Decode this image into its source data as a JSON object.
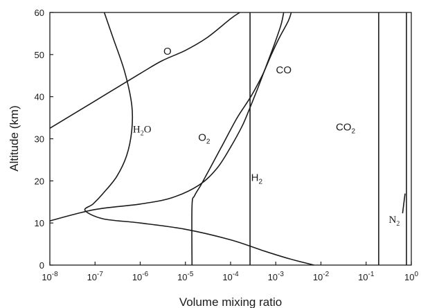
{
  "chart_data": {
    "type": "line",
    "title": "",
    "xlabel": "Volume mixing ratio",
    "ylabel": "Altitude (km)",
    "x_scale": "log",
    "xlim": [
      1e-08,
      1
    ],
    "ylim": [
      0,
      60
    ],
    "grid": false,
    "legend": "none",
    "x_ticks": [
      {
        "base": "10",
        "exp": "-8",
        "value": 1e-08
      },
      {
        "base": "10",
        "exp": "-7",
        "value": 1e-07
      },
      {
        "base": "10",
        "exp": "-6",
        "value": 1e-06
      },
      {
        "base": "10",
        "exp": "-5",
        "value": 1e-05
      },
      {
        "base": "10",
        "exp": "-4",
        "value": 0.0001
      },
      {
        "base": "10",
        "exp": "-3",
        "value": 0.001
      },
      {
        "base": "10",
        "exp": "-2",
        "value": 0.01
      },
      {
        "base": "10",
        "exp": "-1",
        "value": 0.1
      },
      {
        "base": "10",
        "exp": "0",
        "value": 1
      }
    ],
    "y_ticks": [
      "0",
      "10",
      "20",
      "30",
      "40",
      "50",
      "60"
    ],
    "series": [
      {
        "name": "O",
        "label_text": "O",
        "label_sub": "",
        "label_at": {
          "x": 4e-06,
          "y": 50
        },
        "points": [
          [
            1e-08,
            32.5
          ],
          [
            1e-07,
            39
          ],
          [
            1e-06,
            45.5
          ],
          [
            3e-06,
            48.5
          ],
          [
            1e-05,
            51
          ],
          [
            3e-05,
            54
          ],
          [
            0.0001,
            58.5
          ],
          [
            0.00016,
            60
          ]
        ]
      },
      {
        "name": "H2O",
        "label_text": "H",
        "label_sub": "2",
        "label_suffix": "O",
        "label_at": {
          "x": 1.1e-06,
          "y": 31.5
        },
        "points": [
          [
            1.6e-07,
            60
          ],
          [
            2.5e-07,
            54
          ],
          [
            4.5e-07,
            46
          ],
          [
            6.5e-07,
            38
          ],
          [
            6.5e-07,
            32
          ],
          [
            5e-07,
            26
          ],
          [
            3e-07,
            21
          ],
          [
            1.5e-07,
            17
          ],
          [
            9e-08,
            14.5
          ],
          [
            6e-08,
            13
          ],
          [
            1.5e-07,
            11
          ],
          [
            1e-06,
            10
          ],
          [
            1e-05,
            8.5
          ],
          [
            0.0001,
            6
          ],
          [
            0.0005,
            3.5
          ],
          [
            0.002,
            1.5
          ],
          [
            0.007,
            0
          ]
        ]
      },
      {
        "name": "O2",
        "label_text": "O",
        "label_sub": "2",
        "label_at": {
          "x": 2.6e-05,
          "y": 29.5
        },
        "points": [
          [
            1e-08,
            10.5
          ],
          [
            5e-08,
            12.5
          ],
          [
            1.5e-07,
            13.5
          ],
          [
            1e-06,
            14.5
          ],
          [
            5e-06,
            16
          ],
          [
            2e-05,
            19
          ],
          [
            5e-05,
            23
          ],
          [
            0.0001,
            28
          ],
          [
            0.00018,
            33
          ],
          [
            0.00026,
            37
          ],
          [
            0.0004,
            42
          ],
          [
            0.0006,
            47
          ],
          [
            0.0009,
            52
          ],
          [
            0.0013,
            57
          ],
          [
            0.0015,
            60
          ]
        ]
      },
      {
        "name": "CO",
        "label_text": "CO",
        "label_sub": "",
        "label_at": {
          "x": 0.0015,
          "y": 45.5
        },
        "points": [
          [
            1.4e-05,
            0
          ],
          [
            1.4e-05,
            14
          ],
          [
            1.6e-05,
            16.5
          ],
          [
            2.2e-05,
            19
          ],
          [
            3.5e-05,
            23
          ],
          [
            7e-05,
            29
          ],
          [
            0.00014,
            35
          ],
          [
            0.00028,
            40
          ],
          [
            0.0005,
            45
          ],
          [
            0.0008,
            50
          ],
          [
            0.0012,
            54
          ],
          [
            0.0019,
            58
          ],
          [
            0.0022,
            60
          ]
        ]
      },
      {
        "name": "H2",
        "label_text": "H",
        "label_sub": "2",
        "label_at": {
          "x": 0.00038,
          "y": 20
        },
        "points": [
          [
            0.00027,
            0
          ],
          [
            0.00027,
            60
          ]
        ]
      },
      {
        "name": "CO2",
        "label_text": "CO",
        "label_sub": "2",
        "label_at": {
          "x": 0.035,
          "y": 32
        },
        "points": [
          [
            0.19,
            0
          ],
          [
            0.19,
            60
          ]
        ]
      },
      {
        "name": "N2",
        "label_text": "N",
        "label_sub": "2",
        "label_at": {
          "x": 0.42,
          "y": 10
        },
        "points": [
          [
            0.78,
            0
          ],
          [
            0.78,
            60
          ]
        ]
      }
    ]
  }
}
